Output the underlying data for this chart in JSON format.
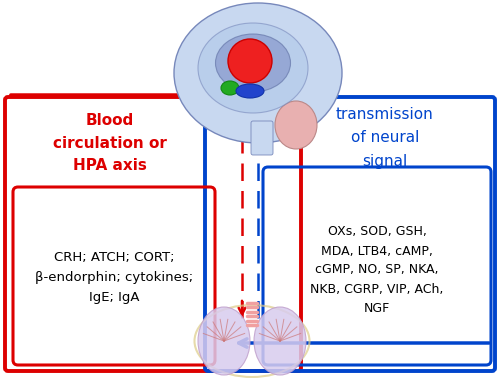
{
  "bg_color": "#ffffff",
  "red_color": "#dd0000",
  "blue_color": "#0044cc",
  "black": "#111111",
  "left_label": "Blood\ncirculation or\nHPA axis",
  "right_label": "transmission\nof neural\nsignal",
  "left_box_text": "CRH; ATCH; CORT;\nβ-endorphin; cytokines;\nIgE; IgA",
  "right_box_text": "OXs, SOD, GSH,\nMDA, LTB4, cAMP,\ncGMP, NO, SP, NKA,\nNKB, CGRP, VIP, ACh,\nNGF",
  "figsize": [
    5.0,
    3.78
  ],
  "dpi": 100,
  "brain_color": "#c8d8f0",
  "brain_inner_color": "#a0b8e8",
  "brain_arc_color": "#8899cc",
  "red_nuc_color": "#ee2020",
  "green_color": "#22aa22",
  "blue_nuc_color": "#2244cc",
  "brainstem_color": "#e8b0b0",
  "lung_color": "#d8ccee",
  "lung_edge_color": "#c0a0cc",
  "trachea_color": "#f0a0a0",
  "lung_vein_color": "#cc7777"
}
